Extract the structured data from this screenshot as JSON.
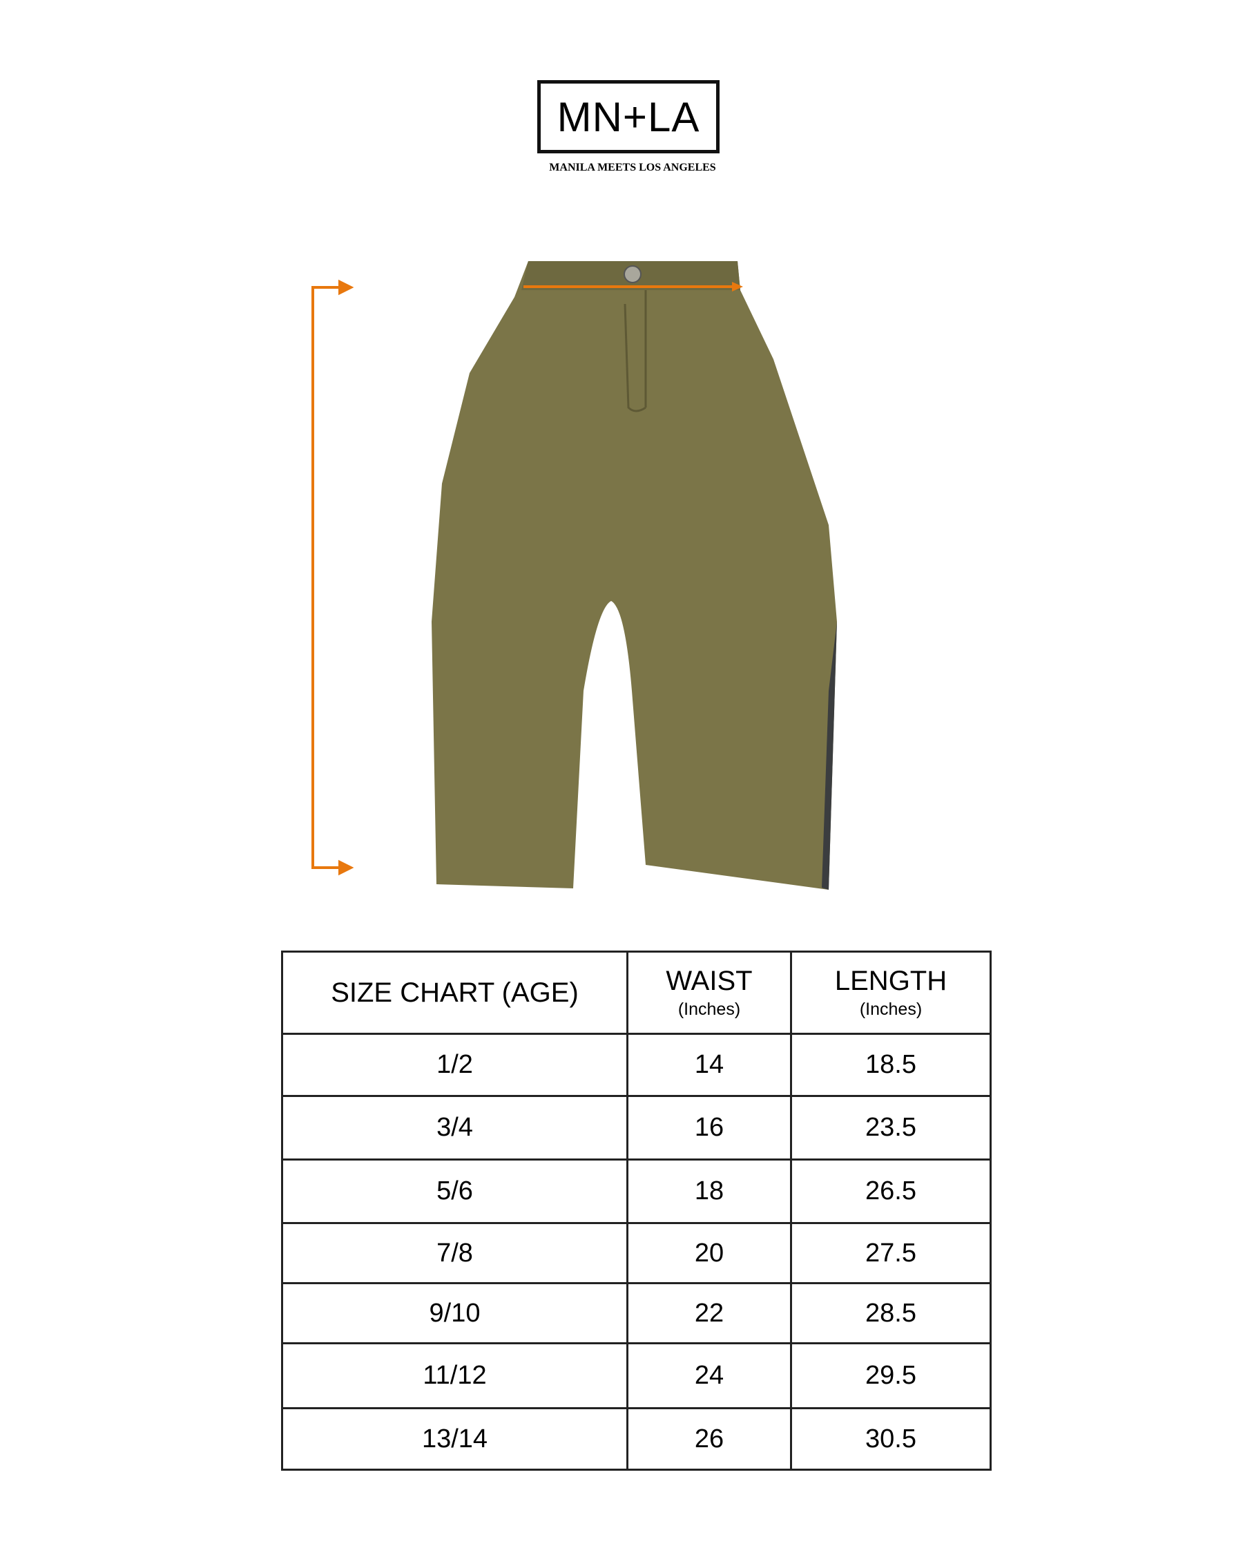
{
  "logo": {
    "mark": "MN+LA",
    "tagline": "MANILA MEETS LOS ANGELES"
  },
  "colors": {
    "measure_arrow": "#e8780e",
    "fabric": "#7b7548",
    "border": "#222222"
  },
  "table": {
    "headers": [
      {
        "label": "SIZE CHART (AGE)",
        "unit": ""
      },
      {
        "label": "WAIST",
        "unit": "(Inches)"
      },
      {
        "label": "LENGTH",
        "unit": "(Inches)"
      }
    ],
    "rows": [
      [
        "1/2",
        "14",
        "18.5"
      ],
      [
        "3/4",
        "16",
        "23.5"
      ],
      [
        "5/6",
        "18",
        "26.5"
      ],
      [
        "7/8",
        "20",
        "27.5"
      ],
      [
        "9/10",
        "22",
        "28.5"
      ],
      [
        "11/12",
        "24",
        "29.5"
      ],
      [
        "13/14",
        "26",
        "30.5"
      ]
    ]
  }
}
